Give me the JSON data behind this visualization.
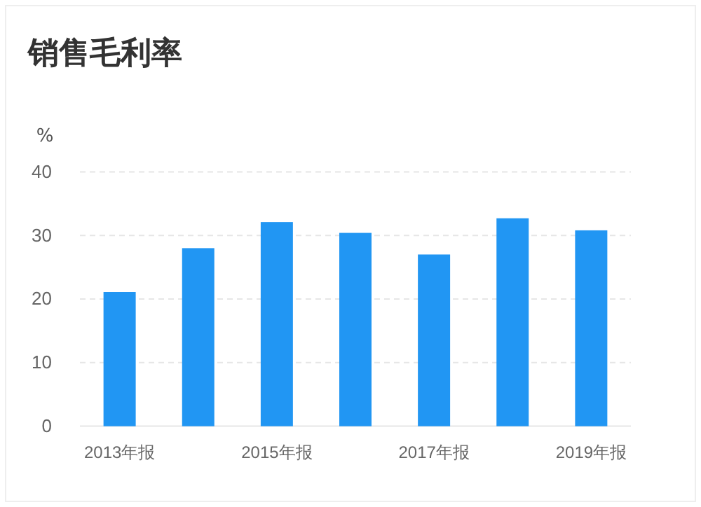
{
  "chart_data": {
    "type": "bar",
    "title": "销售毛利率",
    "ylabel": "%",
    "categories": [
      "2013年报",
      null,
      "2015年报",
      null,
      "2017年报",
      null,
      "2019年报"
    ],
    "values": [
      21.1,
      28,
      32.1,
      30.4,
      27,
      32.7,
      30.8
    ],
    "color": "#2196f3",
    "ylim": [
      0,
      40
    ],
    "yticks": [
      0,
      10,
      20,
      30,
      40
    ],
    "grid": "y"
  }
}
